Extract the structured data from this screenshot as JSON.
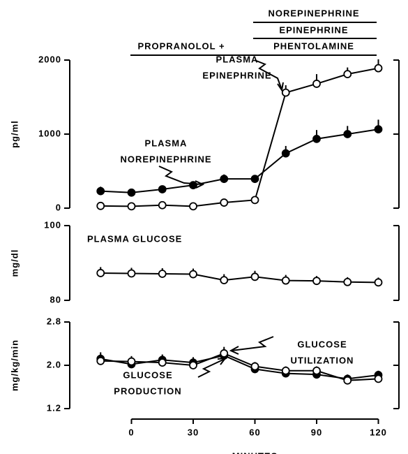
{
  "header": {
    "treatments": [
      "PROPRANOLOL +",
      "NOREPINEPHRINE",
      "EPINEPHRINE",
      "PHENTOLAMINE"
    ]
  },
  "chart_data": [
    {
      "type": "line",
      "ylabel": "pg/ml",
      "xlim": [
        -30,
        130
      ],
      "ylim": [
        0,
        2000
      ],
      "yticks": [
        0,
        1000,
        2000
      ],
      "x": [
        -15,
        0,
        15,
        30,
        45,
        60,
        75,
        90,
        105,
        120
      ],
      "annotations": [
        {
          "lines": [
            "PLASMA",
            "EPINEPHRINE"
          ]
        },
        {
          "lines": [
            "PLASMA",
            "NOREPINEPHRINE"
          ]
        }
      ],
      "series": [
        {
          "marker": "filled",
          "color": "#000",
          "values": [
            230,
            210,
            255,
            310,
            395,
            395,
            740,
            935,
            1000,
            1065
          ],
          "errors": [
            60,
            40,
            40,
            40,
            60,
            50,
            100,
            120,
            110,
            130
          ]
        },
        {
          "marker": "open",
          "color": "#000",
          "values": [
            30,
            25,
            40,
            25,
            75,
            110,
            1560,
            1680,
            1810,
            1890
          ],
          "errors": [
            30,
            20,
            20,
            20,
            40,
            40,
            100,
            130,
            90,
            120
          ]
        }
      ]
    },
    {
      "type": "line",
      "ylabel": "mg/dl",
      "xlim": [
        -30,
        130
      ],
      "ylim": [
        80,
        100
      ],
      "yticks": [
        80,
        100
      ],
      "x": [
        -15,
        0,
        15,
        30,
        45,
        60,
        75,
        90,
        105,
        120
      ],
      "annotations": [
        {
          "lines": [
            "PLASMA  GLUCOSE"
          ]
        }
      ],
      "series": [
        {
          "marker": "open",
          "color": "#000",
          "values": [
            87.3,
            87.2,
            87.1,
            87.0,
            85.4,
            86.3,
            85.3,
            85.2,
            84.9,
            84.8
          ],
          "errors": [
            1.6,
            1.5,
            1.5,
            1.5,
            1.6,
            1.6,
            1.5,
            1.3,
            1.3,
            1.3
          ]
        }
      ]
    },
    {
      "type": "line",
      "ylabel": "mg/kg/min",
      "xlabel": "MINUTES",
      "xlim": [
        -30,
        130
      ],
      "ylim": [
        1.2,
        2.8
      ],
      "yticks": [
        1.2,
        {
          "value": 2.0,
          "label": "2.0"
        },
        2.8
      ],
      "xticks": [
        0,
        30,
        60,
        90,
        120
      ],
      "x": [
        -15,
        0,
        15,
        30,
        45,
        60,
        75,
        90,
        105,
        120
      ],
      "annotations": [
        {
          "lines": [
            "GLUCOSE",
            "UTILIZATION"
          ]
        },
        {
          "lines": [
            "GLUCOSE",
            "PRODUCTION"
          ]
        }
      ],
      "series": [
        {
          "marker": "filled",
          "color": "#000",
          "values": [
            2.12,
            2.02,
            2.1,
            2.05,
            2.18,
            1.93,
            1.85,
            1.83,
            1.75,
            1.82
          ],
          "errors": [
            0.12,
            0.1,
            0.1,
            0.1,
            0.12,
            0.08,
            0.08,
            0.08,
            0.08,
            0.08
          ]
        },
        {
          "marker": "open",
          "color": "#000",
          "values": [
            2.08,
            2.07,
            2.05,
            2.0,
            2.22,
            1.98,
            1.9,
            1.9,
            1.72,
            1.75
          ],
          "errors": [
            0.12,
            0.1,
            0.1,
            0.1,
            0.12,
            0.08,
            0.08,
            0.08,
            0.08,
            0.08
          ]
        }
      ]
    }
  ]
}
